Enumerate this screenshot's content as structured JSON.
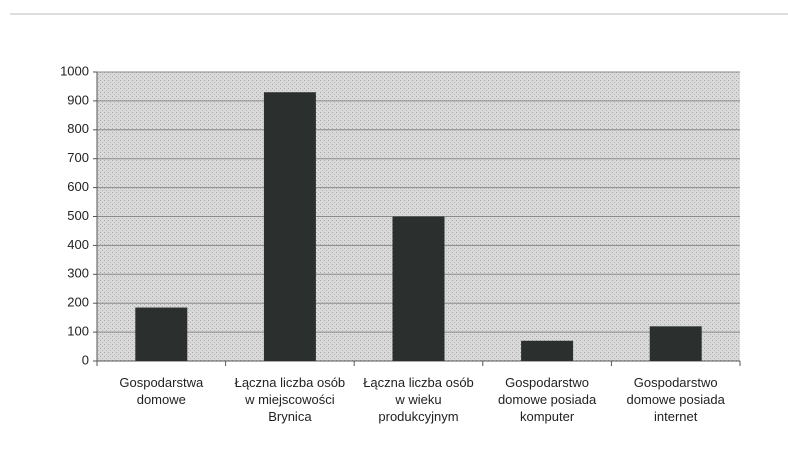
{
  "chart_data": {
    "type": "bar",
    "categories": [
      "Gospodarstwa domowe",
      "Łączna liczba osób w miejscowości Brynica",
      "Łączna liczba osób w wieku produkcyjnym",
      "Gospodarstwo domowe posiada komputer",
      "Gospodarstwo domowe posiada internet"
    ],
    "values": [
      185,
      930,
      500,
      70,
      120
    ],
    "color": "#2b2f2e",
    "ylim": [
      0,
      1000
    ],
    "yticks": [
      0,
      100,
      200,
      300,
      400,
      500,
      600,
      700,
      800,
      900,
      1000
    ],
    "grid": true
  }
}
